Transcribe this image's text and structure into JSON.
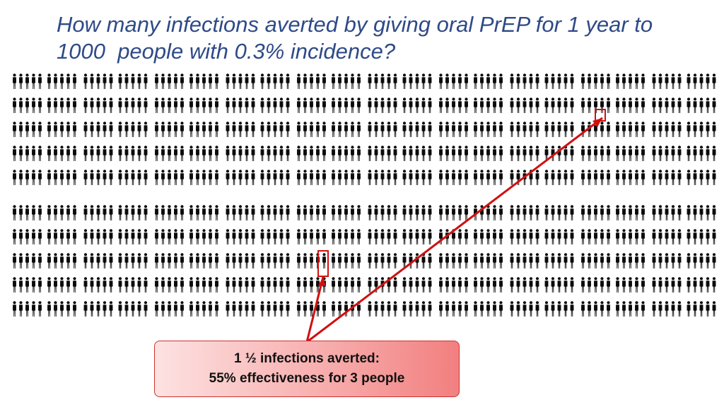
{
  "slide": {
    "title_line1": "How many infections averted by giving oral PrEP for 1 year to",
    "title_line2": "1000  people with 0.3% incidence?",
    "callout_line1": "1 ½ infections averted:",
    "callout_line2": "55% effectiveness for 3 people",
    "accent_color": "#d01010",
    "title_color": "#2e4a87"
  },
  "figure": {
    "people_total": 1000,
    "group_columns": 10,
    "group_rows": 2,
    "people_per_row": 10,
    "rows_per_group": 5
  }
}
